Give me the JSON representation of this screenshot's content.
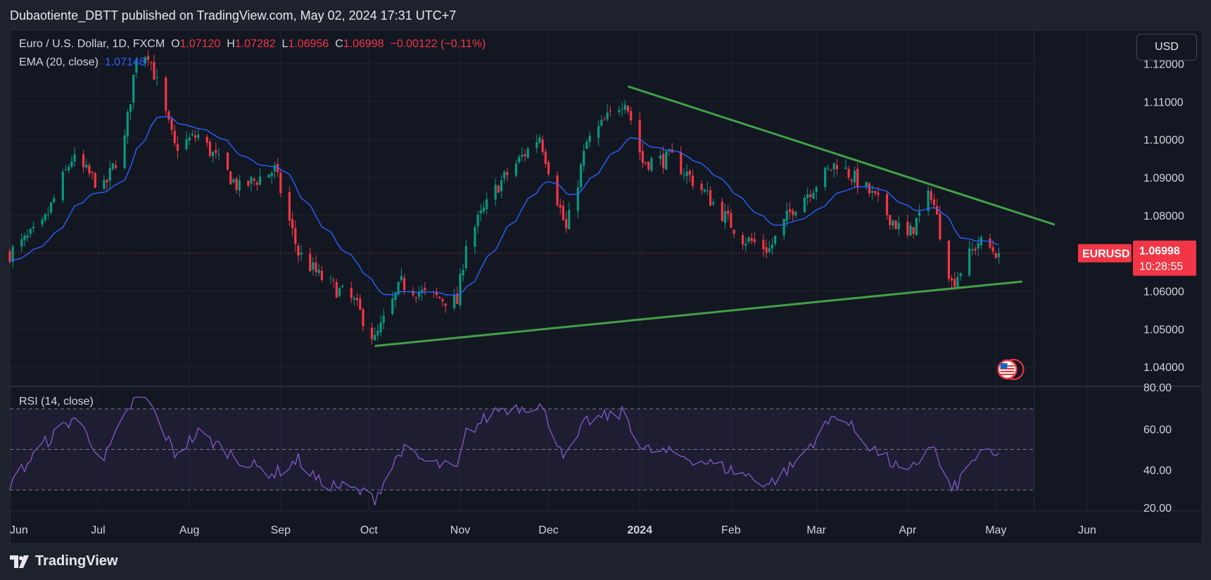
{
  "header": {
    "publisher": "Dubaotiente_DBTT published on TradingView.com, May 02, 2024 17:31 UTC+7"
  },
  "currency_button": "USD",
  "legend": {
    "symbol": "Euro / U.S. Dollar, 1D, FXCM",
    "o_label": "O",
    "o_value": "1.07120",
    "h_label": "H",
    "h_value": "1.07282",
    "l_label": "L",
    "l_value": "1.06956",
    "c_label": "C",
    "c_value": "1.06998",
    "change": "−0.00122 (−0.11%)",
    "ema_label": "EMA (20, close)",
    "ema_value": "1.07148",
    "rsi_label": "RSI (14, close)"
  },
  "price_tag": {
    "symbol": "EURUSD",
    "price": "1.06998",
    "countdown": "10:28:55"
  },
  "footer": {
    "brand": "TradingView"
  },
  "colors": {
    "bull": "#089981",
    "bear": "#f23645",
    "ema": "#2962ff",
    "rsi": "#7e57c2",
    "trendline": "#43a047",
    "tag": "#f23645"
  },
  "chart_data": [
    {
      "type": "candlestick",
      "symbol": "EURUSD",
      "timeframe": "1D",
      "ylim": [
        1.035,
        1.129
      ],
      "y_ticks": [
        "1.12000",
        "1.11000",
        "1.10000",
        "1.09000",
        "1.08000",
        "1.06000",
        "1.05000",
        "1.04000"
      ],
      "x_ticks": [
        "Jun",
        "Jul",
        "Aug",
        "Sep",
        "Oct",
        "Nov",
        "Dec",
        "2024",
        "Feb",
        "Mar",
        "Apr",
        "May",
        "Jun"
      ],
      "last_price": 1.06998,
      "close_anchors": [
        [
          "2023-06-01",
          1.07
        ],
        [
          "2023-06-12",
          1.077
        ],
        [
          "2023-06-22",
          1.095
        ],
        [
          "2023-07-03",
          1.087
        ],
        [
          "2023-07-10",
          1.1
        ],
        [
          "2023-07-14",
          1.122
        ],
        [
          "2023-07-18",
          1.123
        ],
        [
          "2023-07-27",
          1.098
        ],
        [
          "2023-08-04",
          1.101
        ],
        [
          "2023-08-18",
          1.087
        ],
        [
          "2023-08-30",
          1.092
        ],
        [
          "2023-09-07",
          1.07
        ],
        [
          "2023-09-14",
          1.064
        ],
        [
          "2023-09-26",
          1.057
        ],
        [
          "2023-10-03",
          1.047
        ],
        [
          "2023-10-12",
          1.062
        ],
        [
          "2023-10-20",
          1.059
        ],
        [
          "2023-10-31",
          1.057
        ],
        [
          "2023-11-03",
          1.073
        ],
        [
          "2023-11-14",
          1.088
        ],
        [
          "2023-11-28",
          1.101
        ],
        [
          "2023-12-07",
          1.076
        ],
        [
          "2023-12-14",
          1.099
        ],
        [
          "2023-12-27",
          1.111
        ],
        [
          "2024-01-02",
          1.094
        ],
        [
          "2024-01-12",
          1.095
        ],
        [
          "2024-01-23",
          1.086
        ],
        [
          "2024-02-05",
          1.074
        ],
        [
          "2024-02-14",
          1.071
        ],
        [
          "2024-02-22",
          1.082
        ],
        [
          "2024-03-08",
          1.094
        ],
        [
          "2024-03-19",
          1.086
        ],
        [
          "2024-04-01",
          1.074
        ],
        [
          "2024-04-09",
          1.086
        ],
        [
          "2024-04-16",
          1.062
        ],
        [
          "2024-04-25",
          1.073
        ],
        [
          "2024-05-02",
          1.06998
        ]
      ],
      "ema": {
        "period": 20,
        "last": 1.07148
      },
      "trendlines": [
        {
          "from": [
            "2023-12-28",
            1.114
          ],
          "to": [
            "2024-05-21",
            1.0775
          ]
        },
        {
          "from": [
            "2023-10-03",
            1.0455
          ],
          "to": [
            "2024-05-10",
            1.0625
          ]
        }
      ]
    },
    {
      "type": "line",
      "name": "RSI (14, close)",
      "ylim": [
        20,
        80
      ],
      "y_ticks": [
        "80.00",
        "60.00",
        "40.00",
        "20.00"
      ],
      "levels": [
        70,
        50,
        30
      ],
      "anchors": [
        [
          "2023-06-01",
          33
        ],
        [
          "2023-06-12",
          52
        ],
        [
          "2023-06-23",
          66
        ],
        [
          "2023-07-03",
          45
        ],
        [
          "2023-07-13",
          74
        ],
        [
          "2023-07-18",
          74
        ],
        [
          "2023-07-27",
          48
        ],
        [
          "2023-08-04",
          58
        ],
        [
          "2023-08-22",
          42
        ],
        [
          "2023-08-30",
          38
        ],
        [
          "2023-09-07",
          45
        ],
        [
          "2023-09-14",
          34
        ],
        [
          "2023-09-26",
          30
        ],
        [
          "2023-10-03",
          26
        ],
        [
          "2023-10-12",
          50
        ],
        [
          "2023-10-20",
          44
        ],
        [
          "2023-10-31",
          40
        ],
        [
          "2023-11-03",
          58
        ],
        [
          "2023-11-14",
          70
        ],
        [
          "2023-11-28",
          72
        ],
        [
          "2023-12-07",
          46
        ],
        [
          "2023-12-14",
          64
        ],
        [
          "2023-12-27",
          68
        ],
        [
          "2024-01-02",
          50
        ],
        [
          "2024-01-12",
          48
        ],
        [
          "2024-01-23",
          44
        ],
        [
          "2024-02-05",
          38
        ],
        [
          "2024-02-14",
          33
        ],
        [
          "2024-02-22",
          42
        ],
        [
          "2024-03-08",
          68
        ],
        [
          "2024-03-19",
          52
        ],
        [
          "2024-04-01",
          37
        ],
        [
          "2024-04-09",
          53
        ],
        [
          "2024-04-16",
          29
        ],
        [
          "2024-04-25",
          48
        ],
        [
          "2024-05-02",
          46
        ]
      ]
    }
  ]
}
